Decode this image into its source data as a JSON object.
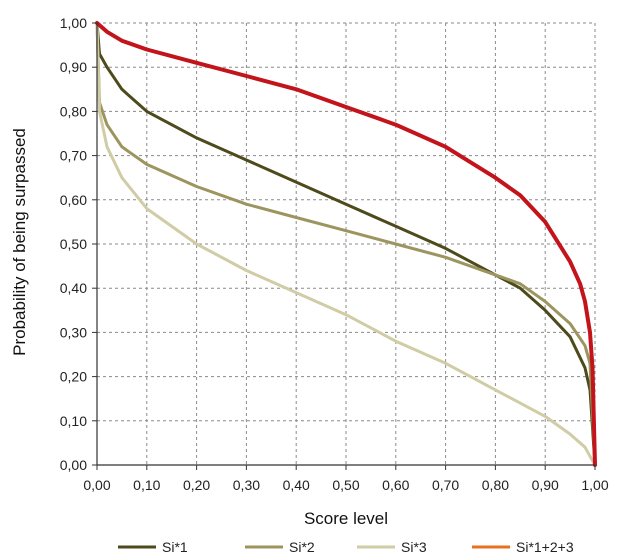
{
  "chart_data": {
    "type": "line",
    "title": "",
    "xlabel": "Score level",
    "ylabel": "Probability of being surpassed",
    "xlim": [
      0,
      1
    ],
    "ylim": [
      0,
      1
    ],
    "grid": true,
    "legend_position": "bottom",
    "x_ticks": [
      "0,00",
      "0,10",
      "0,20",
      "0,30",
      "0,40",
      "0,50",
      "0,60",
      "0,70",
      "0,80",
      "0,90",
      "1,00"
    ],
    "y_ticks": [
      "0,00",
      "0,10",
      "0,20",
      "0,30",
      "0,40",
      "0,50",
      "0,60",
      "0,70",
      "0,80",
      "0,90",
      "1,00"
    ],
    "series": [
      {
        "name": "Si*1",
        "color": "#4d4a1c",
        "points": [
          [
            0,
            1.0
          ],
          [
            0.005,
            0.93
          ],
          [
            0.02,
            0.9
          ],
          [
            0.05,
            0.85
          ],
          [
            0.1,
            0.8
          ],
          [
            0.15,
            0.77
          ],
          [
            0.2,
            0.74
          ],
          [
            0.3,
            0.69
          ],
          [
            0.4,
            0.64
          ],
          [
            0.5,
            0.59
          ],
          [
            0.6,
            0.54
          ],
          [
            0.7,
            0.49
          ],
          [
            0.8,
            0.43
          ],
          [
            0.85,
            0.4
          ],
          [
            0.9,
            0.35
          ],
          [
            0.95,
            0.29
          ],
          [
            0.98,
            0.22
          ],
          [
            0.99,
            0.17
          ],
          [
            1.0,
            0.0
          ]
        ]
      },
      {
        "name": "Si*2",
        "color": "#9c955f",
        "points": [
          [
            0,
            1.0
          ],
          [
            0.005,
            0.82
          ],
          [
            0.02,
            0.77
          ],
          [
            0.05,
            0.72
          ],
          [
            0.1,
            0.68
          ],
          [
            0.2,
            0.63
          ],
          [
            0.3,
            0.59
          ],
          [
            0.4,
            0.56
          ],
          [
            0.5,
            0.53
          ],
          [
            0.6,
            0.5
          ],
          [
            0.7,
            0.47
          ],
          [
            0.8,
            0.43
          ],
          [
            0.85,
            0.41
          ],
          [
            0.9,
            0.37
          ],
          [
            0.95,
            0.32
          ],
          [
            0.98,
            0.27
          ],
          [
            0.99,
            0.23
          ],
          [
            1.0,
            0.0
          ]
        ]
      },
      {
        "name": "Si*3",
        "color": "#cfcca6",
        "points": [
          [
            0,
            1.0
          ],
          [
            0.005,
            0.8
          ],
          [
            0.02,
            0.72
          ],
          [
            0.05,
            0.65
          ],
          [
            0.1,
            0.58
          ],
          [
            0.2,
            0.5
          ],
          [
            0.3,
            0.44
          ],
          [
            0.4,
            0.39
          ],
          [
            0.5,
            0.34
          ],
          [
            0.6,
            0.28
          ],
          [
            0.7,
            0.23
          ],
          [
            0.8,
            0.17
          ],
          [
            0.9,
            0.11
          ],
          [
            0.95,
            0.07
          ],
          [
            0.98,
            0.04
          ],
          [
            0.99,
            0.02
          ],
          [
            1.0,
            0.0
          ]
        ]
      },
      {
        "name": "Si*1+2+3",
        "color": "#c2141a",
        "legend_color": "#e87020",
        "points": [
          [
            0,
            1.0
          ],
          [
            0.02,
            0.98
          ],
          [
            0.05,
            0.96
          ],
          [
            0.1,
            0.94
          ],
          [
            0.2,
            0.91
          ],
          [
            0.3,
            0.88
          ],
          [
            0.4,
            0.85
          ],
          [
            0.5,
            0.81
          ],
          [
            0.6,
            0.77
          ],
          [
            0.7,
            0.72
          ],
          [
            0.8,
            0.65
          ],
          [
            0.85,
            0.61
          ],
          [
            0.9,
            0.55
          ],
          [
            0.95,
            0.46
          ],
          [
            0.97,
            0.41
          ],
          [
            0.98,
            0.37
          ],
          [
            0.99,
            0.3
          ],
          [
            0.995,
            0.22
          ],
          [
            1.0,
            0.0
          ]
        ]
      }
    ]
  }
}
